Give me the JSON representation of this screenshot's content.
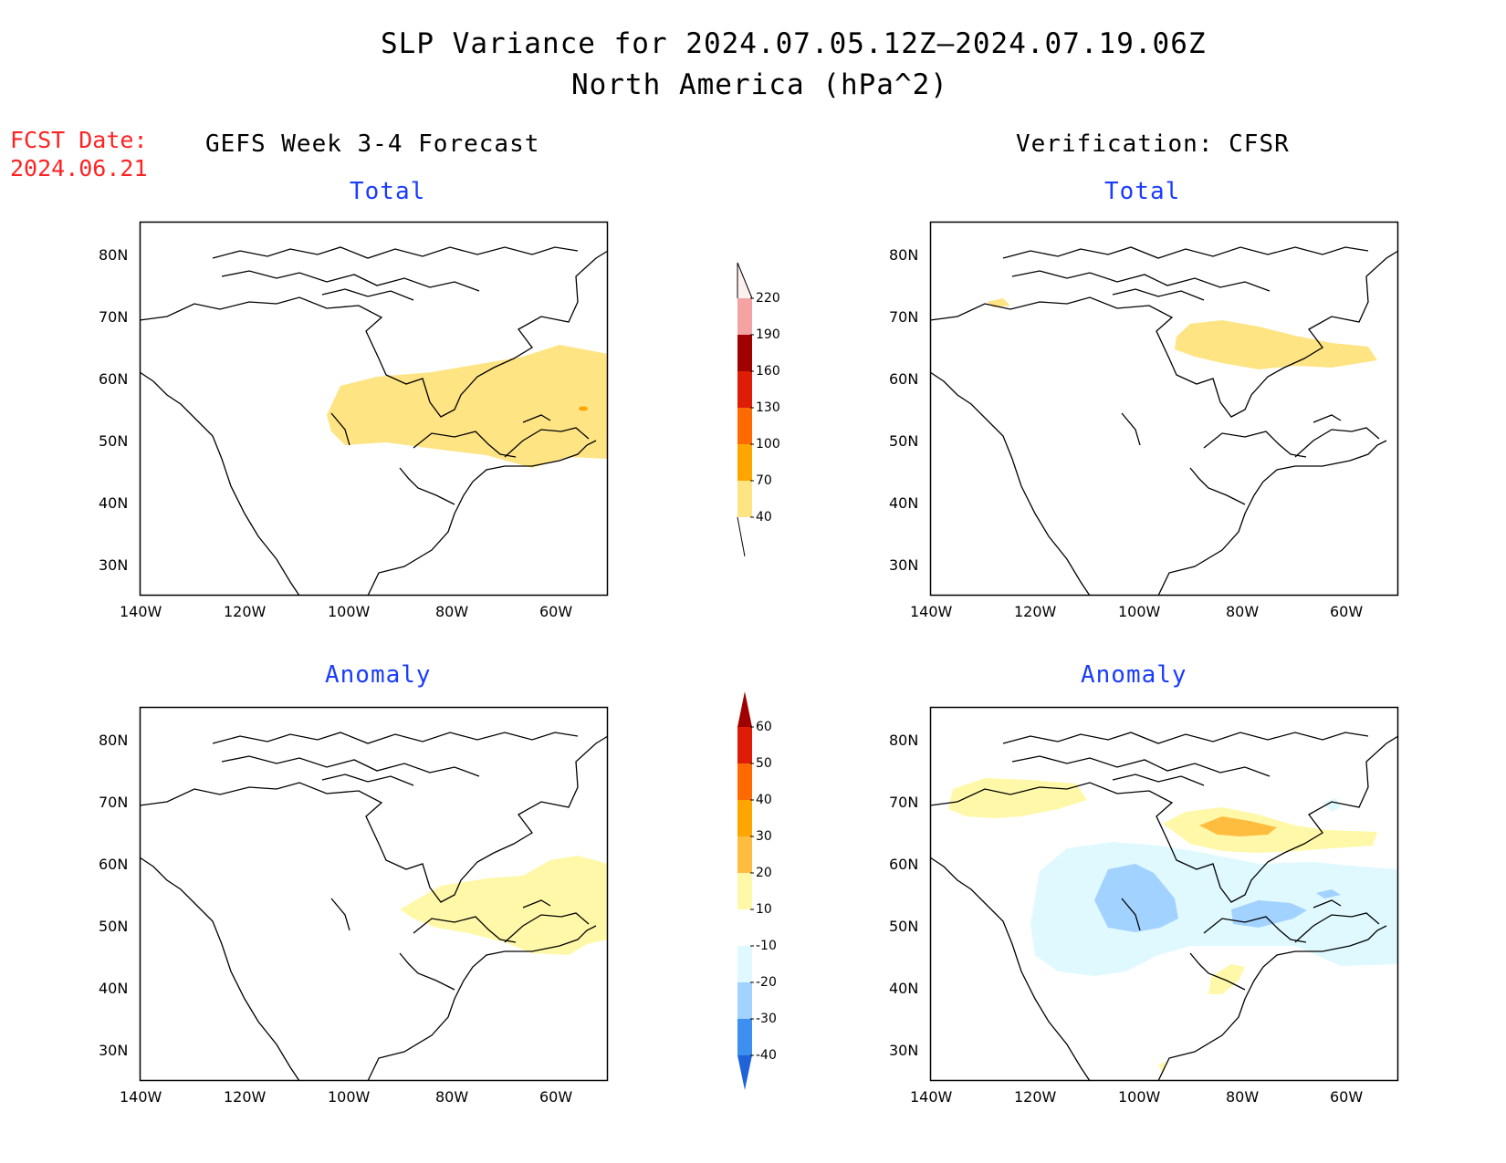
{
  "title": "SLP Variance for 2024.07.05.12Z–2024.07.19.06Z",
  "subtitle": "North America (hPa^2)",
  "fcst_label": "FCST Date:",
  "fcst_date": "2024.06.21",
  "left_header": "GEFS Week 3-4 Forecast",
  "right_header": "Verification: CFSR",
  "panels": {
    "fcst_total": "Total",
    "verif_total": "Total",
    "fcst_anom": "Anomaly",
    "verif_anom": "Anomaly"
  },
  "axes": {
    "lat_labels": [
      "80N",
      "70N",
      "60N",
      "50N",
      "40N",
      "30N"
    ],
    "lon_labels": [
      "140W",
      "120W",
      "100W",
      "80W",
      "60W"
    ],
    "lat_range": [
      25,
      85
    ],
    "lon_range": [
      -140,
      -50
    ]
  },
  "colorbar_total": {
    "labels": [
      "220",
      "190",
      "160",
      "130",
      "100",
      "70",
      "40"
    ],
    "colors": [
      "#fff0f0",
      "#f4a2a2",
      "#a00000",
      "#dd1d06",
      "#ff6a00",
      "#ffa500",
      "#ffe484"
    ]
  },
  "colorbar_anom": {
    "labels": [
      "60",
      "50",
      "40",
      "30",
      "20",
      "10",
      "-10",
      "-20",
      "-30",
      "-40"
    ],
    "colors": [
      "#a00000",
      "#dd1d06",
      "#ff6a00",
      "#ffa500",
      "#ffbd40",
      "#fff8a8",
      "#ffffff",
      "#dff9ff",
      "#a2d2ff",
      "#3d8ff0",
      "#1e63d8"
    ]
  }
}
